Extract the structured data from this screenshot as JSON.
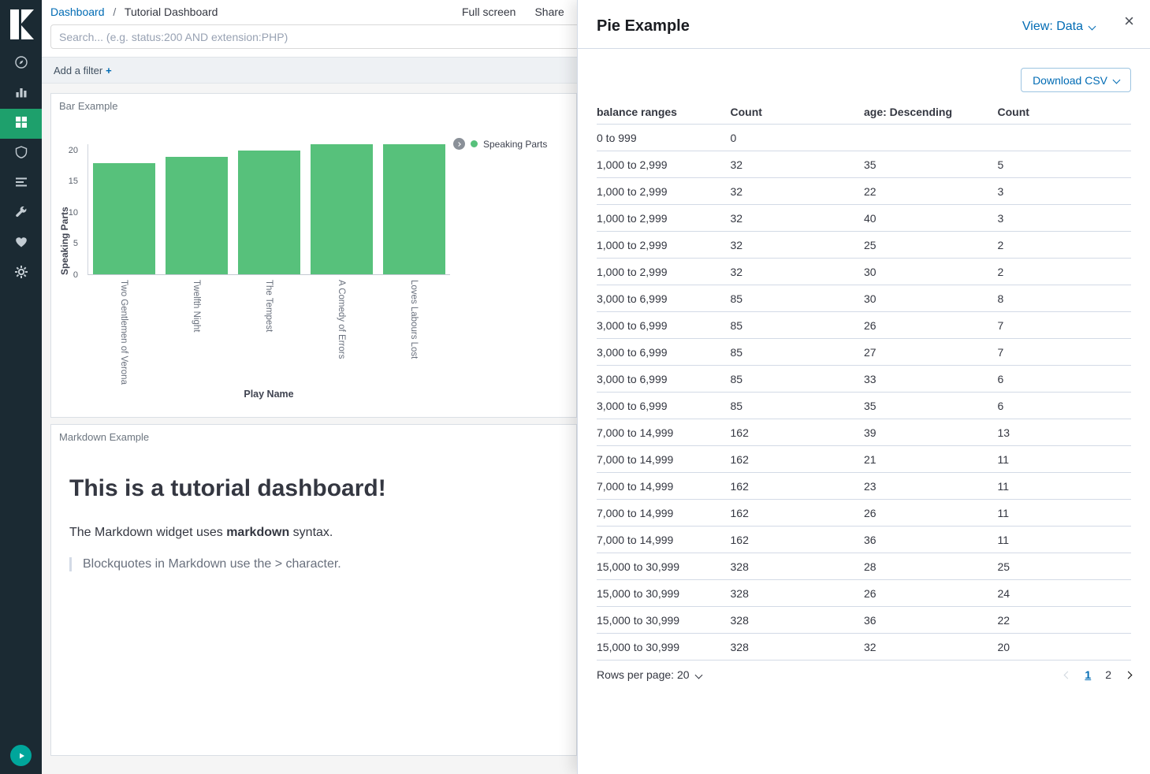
{
  "topbar": {
    "breadcrumb": {
      "root": "Dashboard",
      "separator": "/",
      "current": "Tutorial Dashboard"
    },
    "actions": [
      "Full screen",
      "Share"
    ]
  },
  "search": {
    "placeholder": "Search... (e.g. status:200 AND extension:PHP)",
    "value": ""
  },
  "filter_bar": {
    "add_filter_label": "Add a filter",
    "add_icon": "+"
  },
  "sidebar": {
    "items": [
      "discover",
      "visualize",
      "dashboard",
      "apm",
      "timelion",
      "dev-tools",
      "monitoring",
      "management"
    ],
    "selected": "dashboard"
  },
  "panels": {
    "bar": {
      "title": "Bar Example"
    },
    "markdown": {
      "title": "Markdown Example",
      "heading": "This is a tutorial dashboard!",
      "paragraph_pre": "The Markdown widget uses ",
      "paragraph_bold": "markdown",
      "paragraph_post": " syntax.",
      "blockquote": "Blockquotes in Markdown use the > character."
    }
  },
  "chart_data": {
    "type": "bar",
    "title": "Bar Example",
    "categories": [
      "Two Gentlemen of Verona",
      "Twelfth Night",
      "The Tempest",
      "A Comedy of Errors",
      "Loves Labours Lost"
    ],
    "series": [
      {
        "name": "Speaking Parts",
        "values": [
          18,
          19,
          20,
          21,
          21
        ]
      }
    ],
    "xlabel": "Play Name",
    "ylabel": "Speaking Parts",
    "ylim": [
      0,
      21
    ],
    "yticks": [
      0,
      5,
      10,
      15,
      20
    ],
    "legend_position": "right",
    "bar_color": "#57c17b",
    "grid": false
  },
  "flyout": {
    "title": "Pie Example",
    "view_toggle": "View: Data",
    "close_icon": "×",
    "download_csv": "Download CSV",
    "table": {
      "columns": [
        "balance ranges",
        "Count",
        "age: Descending",
        "Count"
      ],
      "rows": [
        [
          "0 to 999",
          "0",
          "",
          ""
        ],
        [
          "1,000 to 2,999",
          "32",
          "35",
          "5"
        ],
        [
          "1,000 to 2,999",
          "32",
          "22",
          "3"
        ],
        [
          "1,000 to 2,999",
          "32",
          "40",
          "3"
        ],
        [
          "1,000 to 2,999",
          "32",
          "25",
          "2"
        ],
        [
          "1,000 to 2,999",
          "32",
          "30",
          "2"
        ],
        [
          "3,000 to 6,999",
          "85",
          "30",
          "8"
        ],
        [
          "3,000 to 6,999",
          "85",
          "26",
          "7"
        ],
        [
          "3,000 to 6,999",
          "85",
          "27",
          "7"
        ],
        [
          "3,000 to 6,999",
          "85",
          "33",
          "6"
        ],
        [
          "3,000 to 6,999",
          "85",
          "35",
          "6"
        ],
        [
          "7,000 to 14,999",
          "162",
          "39",
          "13"
        ],
        [
          "7,000 to 14,999",
          "162",
          "21",
          "11"
        ],
        [
          "7,000 to 14,999",
          "162",
          "23",
          "11"
        ],
        [
          "7,000 to 14,999",
          "162",
          "26",
          "11"
        ],
        [
          "7,000 to 14,999",
          "162",
          "36",
          "11"
        ],
        [
          "15,000 to 30,999",
          "328",
          "28",
          "25"
        ],
        [
          "15,000 to 30,999",
          "328",
          "26",
          "24"
        ],
        [
          "15,000 to 30,999",
          "328",
          "36",
          "22"
        ],
        [
          "15,000 to 30,999",
          "328",
          "32",
          "20"
        ]
      ]
    },
    "pagination": {
      "rows_per_page": "Rows per page: 20",
      "pages": [
        "1",
        "2"
      ],
      "active_page": "1",
      "prev_enabled": false,
      "next_enabled": true
    }
  },
  "colors": {
    "accent_blue": "#006bb4",
    "bar_green": "#57c17b",
    "sidebar_bg": "#1b2a33",
    "selected_item_green": "#1ea06c",
    "teal": "#00a69b"
  }
}
